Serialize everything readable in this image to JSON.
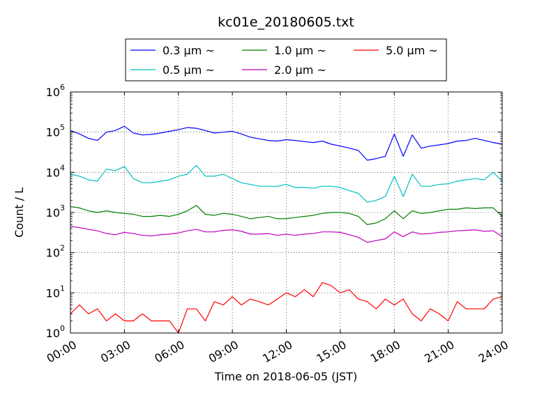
{
  "chart_data": {
    "type": "line",
    "title": "kc01e_20180605.txt",
    "xlabel": "Time on 2018-06-05 (JST)",
    "ylabel": "Count / L",
    "x_unit": "hours",
    "xlim": [
      0,
      24
    ],
    "yscale": "log",
    "ylim": [
      1,
      1000000
    ],
    "grid": true,
    "legend_position": "top-center",
    "x_tick_labels": [
      "00:00",
      "03:00",
      "06:00",
      "09:00",
      "12:00",
      "15:00",
      "18:00",
      "21:00",
      "24:00"
    ],
    "y_tick_labels": [
      {
        "base": "10",
        "exp": "0"
      },
      {
        "base": "10",
        "exp": "1"
      },
      {
        "base": "10",
        "exp": "2"
      },
      {
        "base": "10",
        "exp": "3"
      },
      {
        "base": "10",
        "exp": "4"
      },
      {
        "base": "10",
        "exp": "5"
      },
      {
        "base": "10",
        "exp": "6"
      }
    ],
    "x": [
      0,
      0.5,
      1,
      1.5,
      2,
      2.5,
      3,
      3.5,
      4,
      4.5,
      5,
      5.5,
      6,
      6.5,
      7,
      7.5,
      8,
      8.5,
      9,
      9.5,
      10,
      10.5,
      11,
      11.5,
      12,
      12.5,
      13,
      13.5,
      14,
      14.5,
      15,
      15.5,
      16,
      16.5,
      17,
      17.5,
      18,
      18.5,
      19,
      19.5,
      20,
      20.5,
      21,
      21.5,
      22,
      22.5,
      23,
      23.5,
      24
    ],
    "series": [
      {
        "name": "0.3 μm ~",
        "color": "#0000ff",
        "values": [
          110000,
          90000,
          70000,
          62000,
          100000,
          110000,
          140000,
          95000,
          85000,
          88000,
          95000,
          105000,
          115000,
          130000,
          125000,
          110000,
          95000,
          100000,
          105000,
          90000,
          75000,
          68000,
          62000,
          60000,
          65000,
          62000,
          58000,
          55000,
          60000,
          50000,
          45000,
          40000,
          35000,
          20000,
          22000,
          25000,
          90000,
          25000,
          85000,
          40000,
          45000,
          48000,
          52000,
          60000,
          62000,
          70000,
          62000,
          55000,
          50000
        ]
      },
      {
        "name": "0.5 μm ~",
        "color": "#00bfbf",
        "values": [
          9000,
          8000,
          6500,
          6000,
          12000,
          11000,
          14000,
          7000,
          5500,
          5500,
          6000,
          6500,
          8000,
          9000,
          15000,
          8000,
          8000,
          9000,
          7000,
          5500,
          5000,
          4500,
          4500,
          4500,
          5000,
          4200,
          4200,
          4000,
          4500,
          4500,
          4200,
          3500,
          3000,
          1800,
          2000,
          2500,
          8000,
          2500,
          9000,
          4500,
          4500,
          5000,
          5200,
          6000,
          6500,
          7000,
          6500,
          10000,
          6000
        ]
      },
      {
        "name": "1.0 μm ~",
        "color": "#008000",
        "values": [
          1400,
          1300,
          1100,
          1000,
          1100,
          1000,
          950,
          900,
          800,
          800,
          850,
          800,
          900,
          1100,
          1500,
          900,
          850,
          950,
          900,
          800,
          700,
          750,
          800,
          700,
          700,
          750,
          800,
          850,
          950,
          1000,
          1000,
          950,
          800,
          500,
          550,
          700,
          1100,
          700,
          1100,
          950,
          1000,
          1100,
          1200,
          1200,
          1300,
          1250,
          1300,
          1300,
          800
        ]
      },
      {
        "name": "2.0 μm ~",
        "color": "#bf00bf",
        "values": [
          450,
          420,
          380,
          350,
          300,
          280,
          320,
          300,
          270,
          260,
          280,
          290,
          310,
          350,
          380,
          330,
          330,
          360,
          370,
          340,
          290,
          290,
          300,
          270,
          290,
          270,
          290,
          300,
          330,
          330,
          320,
          280,
          240,
          180,
          200,
          220,
          330,
          250,
          330,
          290,
          300,
          320,
          330,
          350,
          360,
          370,
          340,
          350,
          250
        ]
      },
      {
        "name": "5.0 μm ~",
        "color": "#ff0000",
        "values": [
          3,
          5,
          3,
          4,
          2,
          3,
          2,
          2,
          3,
          2,
          2,
          2,
          1,
          4,
          4,
          2,
          6,
          5,
          8,
          5,
          7,
          6,
          5,
          7,
          10,
          8,
          12,
          8,
          18,
          15,
          10,
          12,
          7,
          6,
          4,
          7,
          5,
          7,
          3,
          2,
          4,
          3,
          2,
          6,
          4,
          4,
          4,
          7,
          8
        ]
      }
    ]
  }
}
